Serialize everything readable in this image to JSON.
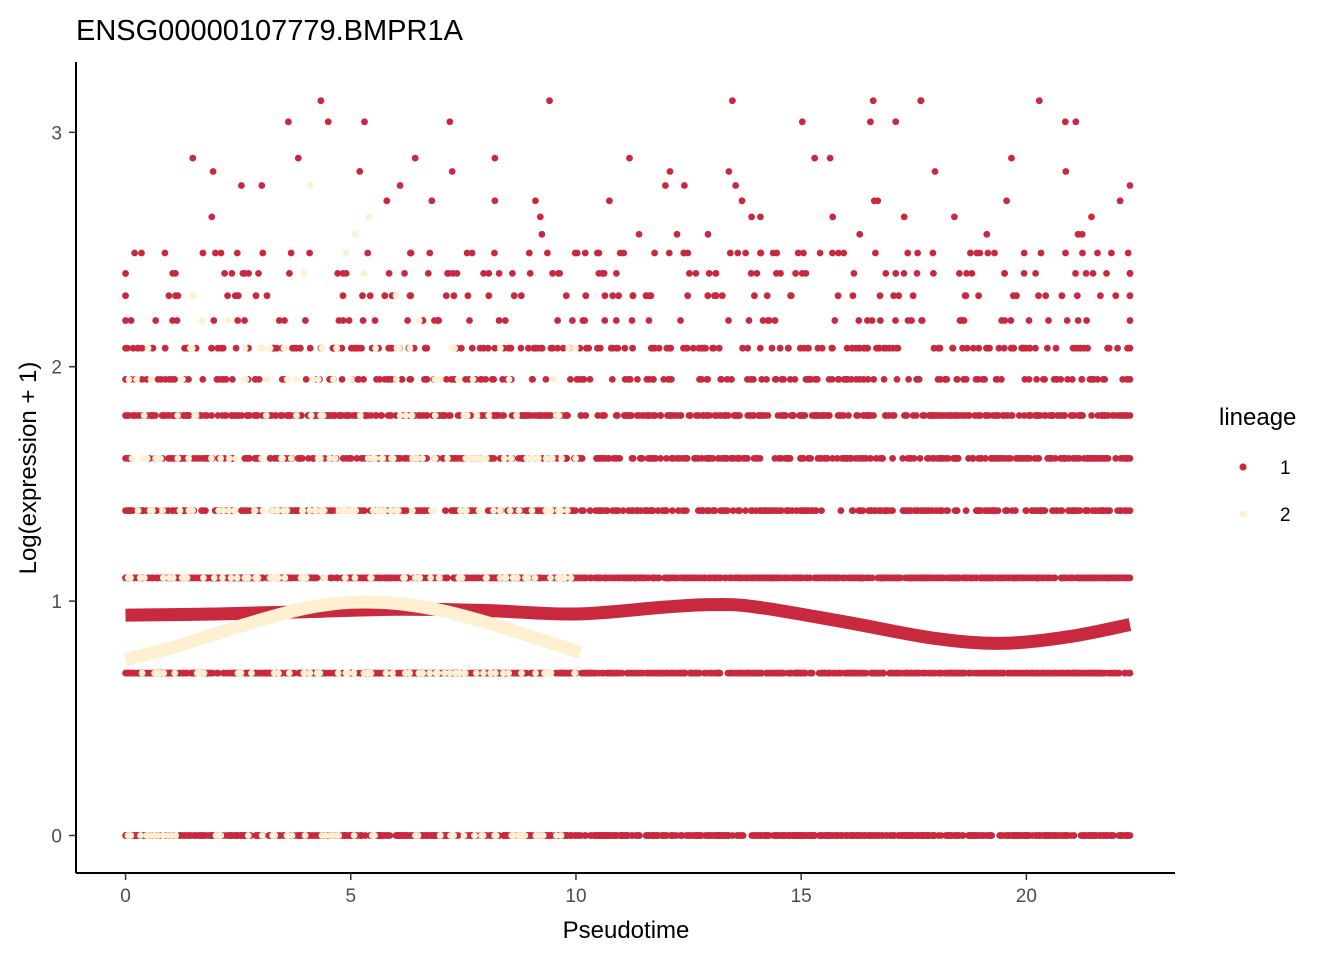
{
  "chart_data": {
    "type": "scatter",
    "title": "ENSG00000107779.BMPR1A",
    "xlabel": "Pseudotime",
    "ylabel": "Log(expression + 1)",
    "xlim": [
      -1.1,
      23.3
    ],
    "ylim": [
      -0.16,
      3.3
    ],
    "x_ticks": [
      0,
      5,
      10,
      15,
      20
    ],
    "x_tick_labels": [
      "0",
      "5",
      "10",
      "15",
      "20"
    ],
    "y_ticks": [
      0,
      1,
      2,
      3
    ],
    "y_tick_labels": [
      "0",
      "1",
      "2",
      "3"
    ],
    "grid": false,
    "legend": {
      "title": "lineage",
      "placement": "right",
      "entries": [
        {
          "label": "1",
          "color": "#C8293F"
        },
        {
          "label": "2",
          "color": "#FFF0D2"
        }
      ]
    },
    "series": [
      {
        "name": "1",
        "color": "#C8293F",
        "x_range": [
          0,
          22.3
        ],
        "levels": [
          {
            "y": 0,
            "density": "very high"
          },
          {
            "y": 0.693,
            "density": "very high"
          },
          {
            "y": 1.099,
            "density": "very high"
          },
          {
            "y": 1.386,
            "density": "high"
          },
          {
            "y": 1.609,
            "density": "high"
          },
          {
            "y": 1.792,
            "density": "high"
          },
          {
            "y": 1.946,
            "density": "medium"
          },
          {
            "y": 2.079,
            "density": "medium"
          },
          {
            "y": 2.197,
            "density": "low"
          },
          {
            "y": 2.303,
            "density": "low"
          },
          {
            "y": 2.398,
            "density": "low"
          },
          {
            "y": 2.485,
            "density": "low"
          },
          {
            "y": 2.565,
            "density": "sparse"
          },
          {
            "y": 2.639,
            "density": "sparse"
          },
          {
            "y": 2.708,
            "density": "sparse"
          },
          {
            "y": 2.773,
            "density": "sparse"
          },
          {
            "y": 2.833,
            "density": "sparse"
          },
          {
            "y": 2.89,
            "density": "sparse"
          },
          {
            "y": 3.045,
            "density": "sparse"
          },
          {
            "y": 3.135,
            "density": "sparse"
          }
        ],
        "outliers": [
          [
            4.5,
            3.045
          ],
          [
            7.2,
            3.045
          ],
          [
            17.1,
            3.045
          ],
          [
            16.6,
            3.135
          ],
          [
            5.2,
            2.833
          ],
          [
            8.2,
            2.89
          ],
          [
            15.3,
            2.89
          ],
          [
            22.3,
            2.773
          ],
          [
            6.8,
            2.708
          ],
          [
            8.2,
            2.708
          ],
          [
            9.1,
            2.708
          ],
          [
            16.7,
            2.708
          ],
          [
            13.9,
            2.639
          ],
          [
            15.7,
            2.639
          ],
          [
            11.4,
            2.565
          ],
          [
            16.3,
            2.565
          ],
          [
            22.3,
            2.398
          ],
          [
            17.1,
            2.398
          ]
        ],
        "smooth": {
          "x": [
            0,
            2,
            4,
            6,
            8,
            10,
            12,
            13,
            14,
            16,
            18,
            19.5,
            21,
            22.3
          ],
          "y": [
            0.94,
            0.945,
            0.955,
            0.965,
            0.96,
            0.945,
            0.975,
            0.985,
            0.975,
            0.91,
            0.84,
            0.82,
            0.85,
            0.9
          ]
        }
      },
      {
        "name": "2",
        "color": "#FFF0D2",
        "x_range": [
          0,
          10
        ],
        "levels": [
          {
            "y": 0,
            "density": "medium"
          },
          {
            "y": 0.693,
            "density": "medium"
          },
          {
            "y": 1.099,
            "density": "medium"
          },
          {
            "y": 1.386,
            "density": "medium"
          },
          {
            "y": 1.609,
            "density": "medium"
          },
          {
            "y": 1.792,
            "density": "low"
          },
          {
            "y": 1.946,
            "density": "low"
          },
          {
            "y": 2.079,
            "density": "low"
          },
          {
            "y": 2.197,
            "density": "sparse"
          },
          {
            "y": 2.303,
            "density": "sparse"
          },
          {
            "y": 2.398,
            "density": "sparse"
          }
        ],
        "outliers": [
          [
            4.1,
            2.773
          ],
          [
            5.4,
            2.639
          ],
          [
            5.1,
            2.565
          ],
          [
            4.9,
            2.485
          ],
          [
            0.5,
            2.079
          ],
          [
            1.7,
            2.197
          ]
        ],
        "smooth": {
          "x": [
            0,
            1,
            2,
            3,
            4,
            5,
            6,
            7,
            8,
            9,
            10.1
          ],
          "y": [
            0.75,
            0.8,
            0.86,
            0.92,
            0.97,
            0.995,
            0.99,
            0.96,
            0.91,
            0.85,
            0.78
          ]
        }
      }
    ]
  }
}
